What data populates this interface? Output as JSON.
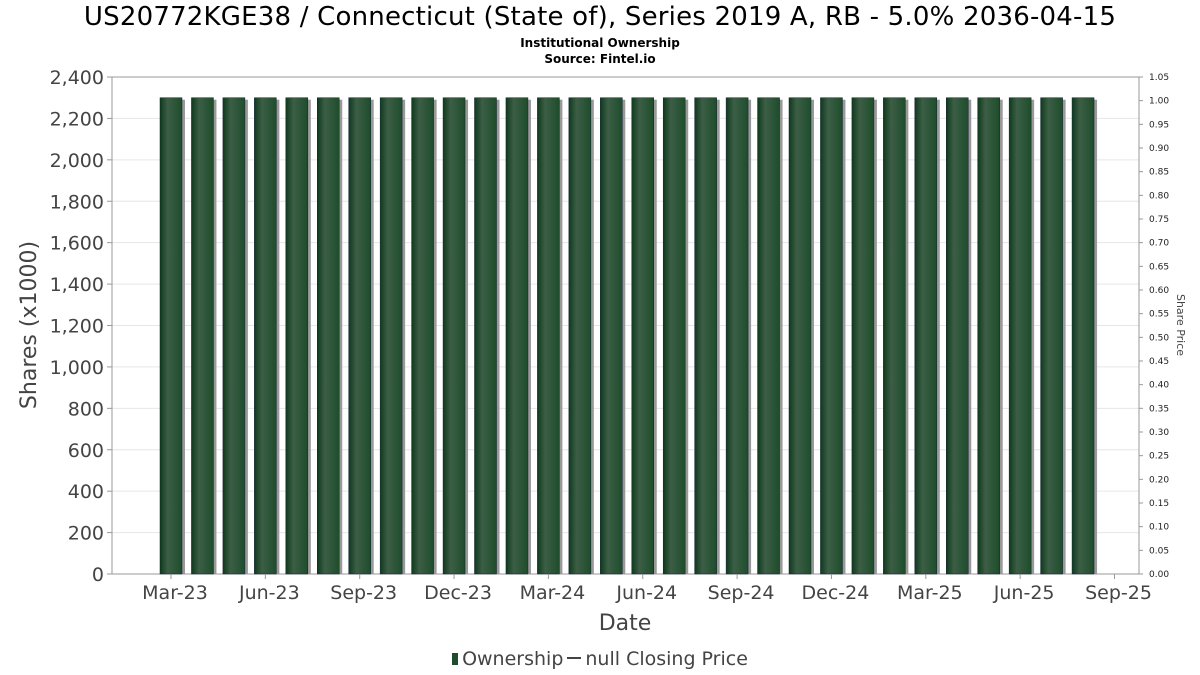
{
  "title": "US20772KGE38 / Connecticut (State of), Series 2019 A, RB - 5.0% 2036-04-15",
  "subtitle": "Institutional Ownership",
  "source": "Source: Fintel.io",
  "legend": {
    "ownership": "Ownership",
    "price": "null Closing Price"
  },
  "colors": {
    "bar": "#1e4d2b",
    "bar_highlight": "#3c5e46",
    "bar_shadow": "#999999",
    "grid": "#e6e6e6"
  },
  "chart_data": {
    "type": "bar",
    "xlabel": "Date",
    "ylabel": "Shares (x1000)",
    "y2label": "Share Price",
    "ylim": [
      0,
      2400
    ],
    "y2lim": [
      0,
      1.05
    ],
    "y_ticks": [
      "0",
      "200",
      "400",
      "600",
      "800",
      "1,000",
      "1,200",
      "1,400",
      "1,600",
      "1,800",
      "2,000",
      "2,200",
      "2,400"
    ],
    "y2_ticks": [
      "0.00",
      "0.05",
      "0.10",
      "0.15",
      "0.20",
      "0.25",
      "0.30",
      "0.35",
      "0.40",
      "0.45",
      "0.50",
      "0.55",
      "0.60",
      "0.65",
      "0.70",
      "0.75",
      "0.80",
      "0.85",
      "0.90",
      "0.95",
      "1.00",
      "1.05"
    ],
    "x_ticks": [
      "Mar-23",
      "Jun-23",
      "Sep-23",
      "Dec-23",
      "Mar-24",
      "Jun-24",
      "Sep-24",
      "Dec-24",
      "Mar-25",
      "Jun-25",
      "Sep-25"
    ],
    "categories": [
      "Mar-23",
      "Apr-23",
      "May-23",
      "Jun-23",
      "Jul-23",
      "Aug-23",
      "Sep-23",
      "Oct-23",
      "Nov-23",
      "Dec-23",
      "Jan-24",
      "Feb-24",
      "Mar-24",
      "Apr-24",
      "May-24",
      "Jun-24",
      "Jul-24",
      "Aug-24",
      "Sep-24",
      "Oct-24",
      "Nov-24",
      "Dec-24",
      "Jan-25",
      "Feb-25",
      "Mar-25",
      "Apr-25",
      "May-25",
      "Jun-25",
      "Jul-25",
      "Aug-25"
    ],
    "series": [
      {
        "name": "Ownership",
        "values": [
          2300,
          2300,
          2300,
          2300,
          2300,
          2300,
          2300,
          2300,
          2300,
          2300,
          2300,
          2300,
          2300,
          2300,
          2300,
          2300,
          2300,
          2300,
          2300,
          2300,
          2300,
          2300,
          2300,
          2300,
          2300,
          2300,
          2300,
          2300,
          2300,
          2300
        ]
      }
    ],
    "grid": true,
    "legend_position": "bottom"
  }
}
